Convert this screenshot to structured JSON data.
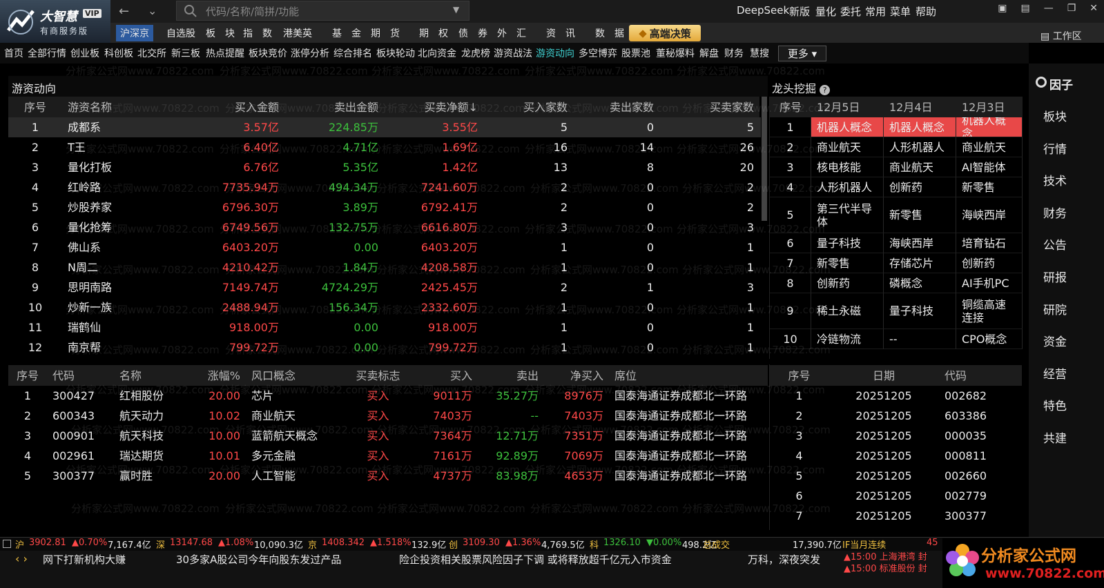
{
  "header": {
    "logo": "大智慧",
    "vip": "VIP",
    "edition": "有商服务版",
    "search_placeholder": "代码/名称/简拼/功能",
    "menu": [
      "DeepSeek",
      "新版",
      "量化",
      "委托",
      "常用",
      "菜单",
      "帮助"
    ]
  },
  "nav": [
    "沪深京",
    "自选股",
    "板　块",
    "指　数",
    "港美英",
    "基　金",
    "期　货",
    "期　权",
    "债　券",
    "外　汇",
    "资　讯",
    "数　据"
  ],
  "nav_special": "高端决策",
  "workspace": "工作区",
  "tabs": [
    "首页",
    "全部行情",
    "创业板",
    "科创板",
    "北交所",
    "新三板",
    "热点提醒",
    "板块竞价",
    "涨停分析",
    "综合排名",
    "板块轮动",
    "北向资金",
    "龙虎榜",
    "游资战法",
    "游资动向",
    "多空博弈",
    "股票池",
    "董秘爆料",
    "解盘",
    "财务",
    "慧搜"
  ],
  "more": "更多",
  "hot_money": {
    "title": "游资动向",
    "columns": [
      "序号",
      "游资名称",
      "买入金额",
      "卖出金额",
      "买卖净额↓",
      "买入家数",
      "卖出家数",
      "买卖家数"
    ],
    "rows": [
      [
        "1",
        "成都系",
        "3.57亿",
        "224.85万",
        "3.55亿",
        "5",
        "0",
        "5"
      ],
      [
        "2",
        "T王",
        "6.40亿",
        "4.71亿",
        "1.69亿",
        "16",
        "14",
        "26"
      ],
      [
        "3",
        "量化打板",
        "6.76亿",
        "5.35亿",
        "1.42亿",
        "13",
        "8",
        "20"
      ],
      [
        "4",
        "红岭路",
        "7735.94万",
        "494.34万",
        "7241.60万",
        "2",
        "0",
        "2"
      ],
      [
        "5",
        "炒股养家",
        "6796.30万",
        "3.89万",
        "6792.41万",
        "2",
        "0",
        "2"
      ],
      [
        "6",
        "量化抢筹",
        "6749.56万",
        "132.75万",
        "6616.80万",
        "3",
        "0",
        "3"
      ],
      [
        "7",
        "佛山系",
        "6403.20万",
        "0.00",
        "6403.20万",
        "1",
        "0",
        "1"
      ],
      [
        "8",
        "N周二",
        "4210.42万",
        "1.84万",
        "4208.58万",
        "1",
        "0",
        "1"
      ],
      [
        "9",
        "思明南路",
        "7149.74万",
        "4724.29万",
        "2425.45万",
        "2",
        "1",
        "3"
      ],
      [
        "10",
        "炒新一族",
        "2488.94万",
        "156.34万",
        "2332.60万",
        "1",
        "0",
        "1"
      ],
      [
        "11",
        "瑞鹤仙",
        "918.00万",
        "0.00",
        "918.00万",
        "1",
        "0",
        "1"
      ],
      [
        "12",
        "南京帮",
        "799.72万",
        "0.00",
        "799.72万",
        "1",
        "0",
        "1"
      ]
    ]
  },
  "leaders": {
    "title": "龙头挖掘",
    "columns": [
      "序号",
      "12月5日",
      "12月4日",
      "12月3日"
    ],
    "rows": [
      [
        "1",
        "机器人概念",
        "机器人概念",
        "机器人概念"
      ],
      [
        "2",
        "商业航天",
        "人形机器人",
        "商业航天"
      ],
      [
        "3",
        "核电核能",
        "商业航天",
        "AI智能体"
      ],
      [
        "4",
        "人形机器人",
        "创新药",
        "新零售"
      ],
      [
        "5",
        "第三代半导体",
        "新零售",
        "海峡西岸"
      ],
      [
        "6",
        "量子科技",
        "海峡西岸",
        "培育钻石"
      ],
      [
        "7",
        "新零售",
        "存储芯片",
        "创新药"
      ],
      [
        "8",
        "创新药",
        "磷概念",
        "AI手机PC"
      ],
      [
        "9",
        "稀土永磁",
        "量子科技",
        "铜缆高速连接"
      ],
      [
        "10",
        "冷链物流",
        "--",
        "CPO概念"
      ]
    ]
  },
  "details": {
    "columns": [
      "序号",
      "代码",
      "名称",
      "涨幅%",
      "风口概念",
      "买卖标志",
      "买入",
      "卖出",
      "净买入",
      "席位"
    ],
    "rows": [
      [
        "1",
        "300427",
        "红相股份",
        "20.00",
        "芯片",
        "买入",
        "9011万",
        "35.27万",
        "8976万",
        "国泰海通证券成都北一环路"
      ],
      [
        "2",
        "600343",
        "航天动力",
        "10.02",
        "商业航天",
        "买入",
        "7403万",
        "--",
        "7403万",
        "国泰海通证券成都北一环路"
      ],
      [
        "3",
        "000901",
        "航天科技",
        "10.00",
        "蓝箭航天概念",
        "买入",
        "7364万",
        "12.71万",
        "7351万",
        "国泰海通证券成都北一环路"
      ],
      [
        "4",
        "002961",
        "瑞达期货",
        "10.01",
        "多元金融",
        "买入",
        "7161万",
        "92.89万",
        "7069万",
        "国泰海通证券成都北一环路"
      ],
      [
        "5",
        "300377",
        "赢时胜",
        "20.00",
        "人工智能",
        "买入",
        "4737万",
        "83.98万",
        "4653万",
        "国泰海通证券成都北一环路"
      ]
    ]
  },
  "dates": {
    "columns": [
      "序号",
      "日期",
      "代码"
    ],
    "rows": [
      [
        "1",
        "20251205",
        "002682"
      ],
      [
        "2",
        "20251205",
        "603386"
      ],
      [
        "3",
        "20251205",
        "000035"
      ],
      [
        "4",
        "20251205",
        "000811"
      ],
      [
        "5",
        "20251205",
        "002660"
      ],
      [
        "6",
        "20251205",
        "002779"
      ],
      [
        "7",
        "20251205",
        "300377"
      ]
    ]
  },
  "sidebar": [
    "因子",
    "板块",
    "行情",
    "技术",
    "财务",
    "公告",
    "研报",
    "研院",
    "资金",
    "经营",
    "特色",
    "共建"
  ],
  "status": {
    "items": [
      {
        "label": "沪",
        "value": "3902.81",
        "change": "▲0.70%",
        "amount": "7,167.4亿"
      },
      {
        "label": "深",
        "value": "13147.68",
        "change": "▲1.08%",
        "amount": "10,090.3亿"
      },
      {
        "label": "京",
        "value": "1408.342",
        "change": "▲1.518%",
        "amount": "132.9亿"
      },
      {
        "label": "创",
        "value": "3109.30",
        "change": "▲1.36%",
        "amount": "4,769.5亿"
      },
      {
        "label": "科",
        "value": "1326.10",
        "change": "▼0.00%",
        "amount": "498.2亿"
      }
    ],
    "total_label": "总成交",
    "total": "17,390.7亿",
    "future": "IF当月连续",
    "future_value": "45"
  },
  "ticker": {
    "news": [
      "网下打新机构大赚",
      "30多家A股公司今年向股东发过产品",
      "险企投资相关股票风险因子下调 或将释放超千亿元入市资金",
      "万科，深夜突发"
    ],
    "alerts": [
      "▲15:00 上海港湾 封",
      "▲15:00 标准股份 封"
    ]
  },
  "watermark": "分析家公式网www.70822.com",
  "footer_logo": {
    "name": "分析家公式网",
    "url": "www.70822.com"
  }
}
